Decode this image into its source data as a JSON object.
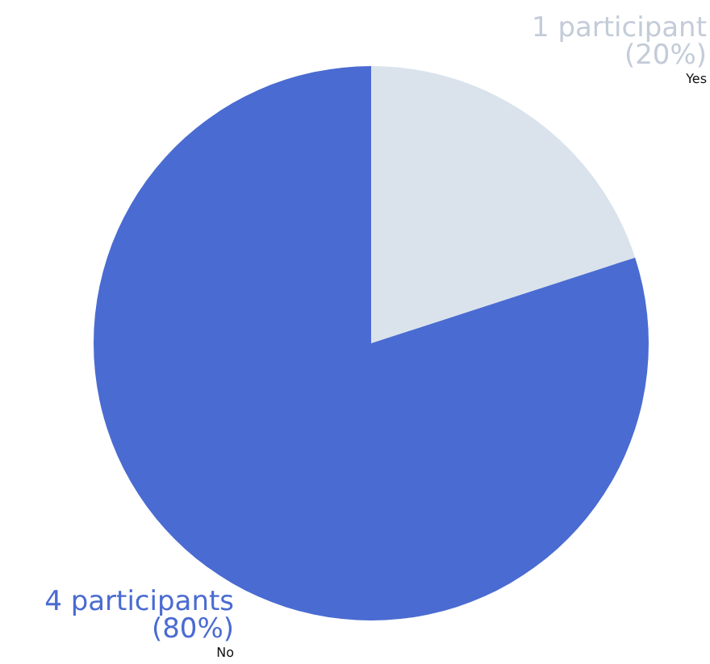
{
  "chart_data": {
    "type": "pie",
    "categories": [
      "Yes",
      "No"
    ],
    "values": [
      20,
      80
    ],
    "colors": [
      "#dae3ec",
      "#4a6bd1"
    ],
    "value_labels": [
      "1 participant\n(20%)",
      "4 participants\n(80%)"
    ]
  }
}
